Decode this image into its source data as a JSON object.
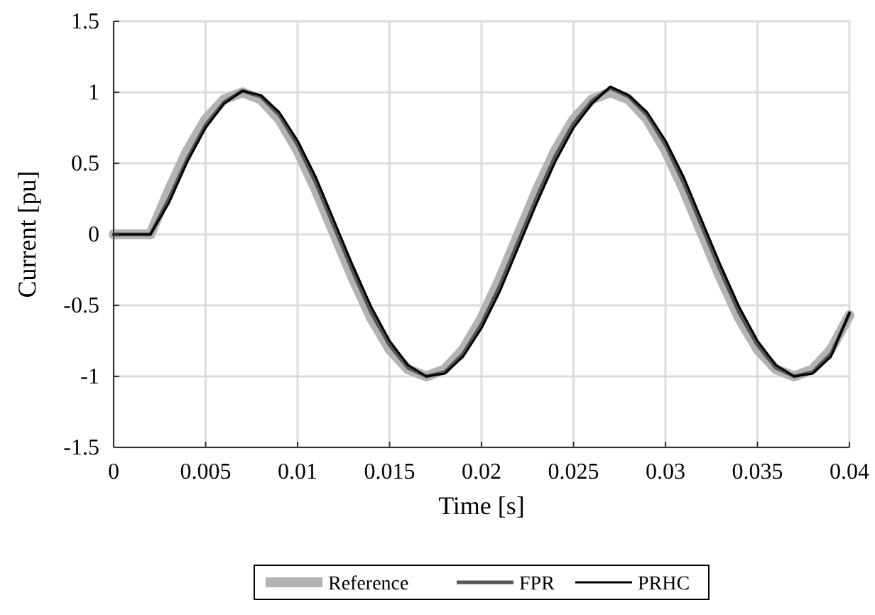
{
  "chart_data": {
    "type": "line",
    "xlabel": "Time [s]",
    "ylabel": "Current [pu]",
    "x": [
      0,
      0.001,
      0.002,
      0.003,
      0.004,
      0.005,
      0.006,
      0.007,
      0.008,
      0.009,
      0.01,
      0.011,
      0.012,
      0.013,
      0.014,
      0.015,
      0.016,
      0.017,
      0.018,
      0.019,
      0.02,
      0.021,
      0.022,
      0.023,
      0.024,
      0.025,
      0.026,
      0.027,
      0.028,
      0.029,
      0.03,
      0.031,
      0.032,
      0.033,
      0.034,
      0.035,
      0.036,
      0.037,
      0.038,
      0.039,
      0.04
    ],
    "series": [
      {
        "name": "Reference",
        "color": "#b3b3b3",
        "values": [
          0,
          0,
          0,
          0.31,
          0.59,
          0.81,
          0.95,
          1,
          0.95,
          0.81,
          0.59,
          0.31,
          0,
          -0.31,
          -0.59,
          -0.81,
          -0.95,
          -1,
          -0.95,
          -0.81,
          -0.59,
          -0.31,
          0,
          0.31,
          0.59,
          0.81,
          0.95,
          1,
          0.95,
          0.81,
          0.59,
          0.31,
          0,
          -0.31,
          -0.59,
          -0.81,
          -0.95,
          -1,
          -0.95,
          -0.81,
          -0.57
        ]
      },
      {
        "name": "FPR",
        "color": "#555555",
        "values": [
          0,
          0,
          0,
          0.25,
          0.53,
          0.77,
          0.93,
          1.01,
          0.97,
          0.84,
          0.63,
          0.36,
          0.05,
          -0.26,
          -0.55,
          -0.78,
          -0.94,
          -1,
          -0.97,
          -0.84,
          -0.63,
          -0.36,
          -0.05,
          0.26,
          0.55,
          0.78,
          0.94,
          1.03,
          0.97,
          0.84,
          0.63,
          0.36,
          0.05,
          -0.26,
          -0.55,
          -0.78,
          -0.94,
          -1,
          -0.97,
          -0.84,
          -0.56
        ]
      },
      {
        "name": "PRHC",
        "color": "#000000",
        "values": [
          0,
          0,
          0,
          0.22,
          0.51,
          0.75,
          0.92,
          1.01,
          0.98,
          0.86,
          0.66,
          0.4,
          0.09,
          -0.22,
          -0.51,
          -0.75,
          -0.92,
          -1,
          -0.98,
          -0.86,
          -0.66,
          -0.4,
          -0.09,
          0.22,
          0.51,
          0.75,
          0.92,
          1.04,
          0.98,
          0.86,
          0.66,
          0.4,
          0.09,
          -0.22,
          -0.51,
          -0.75,
          -0.92,
          -1,
          -0.98,
          -0.86,
          -0.55
        ]
      }
    ],
    "xlim": [
      0,
      0.04
    ],
    "xticks": [
      0,
      0.005,
      0.01,
      0.015,
      0.02,
      0.025,
      0.03,
      0.035,
      0.04
    ],
    "ylim": [
      -1.5,
      1.5
    ],
    "yticks": [
      -1.5,
      -1,
      -0.5,
      0,
      0.5,
      1,
      1.5
    ],
    "grid": true,
    "legend": "bottom",
    "line_style": "solid",
    "marker": "none"
  }
}
